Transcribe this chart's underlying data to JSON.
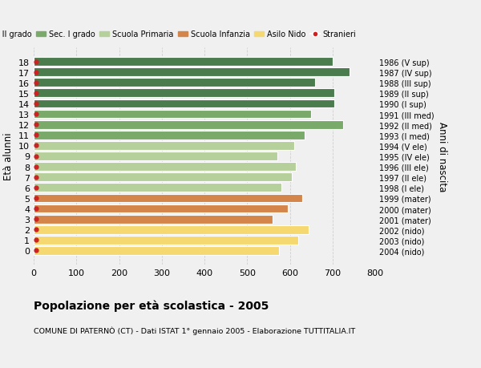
{
  "ages": [
    18,
    17,
    16,
    15,
    14,
    13,
    12,
    11,
    10,
    9,
    8,
    7,
    6,
    5,
    4,
    3,
    2,
    1,
    0
  ],
  "values": [
    700,
    740,
    660,
    705,
    705,
    650,
    725,
    635,
    610,
    570,
    615,
    605,
    580,
    630,
    595,
    560,
    645,
    620,
    575
  ],
  "right_labels": [
    "1986 (V sup)",
    "1987 (IV sup)",
    "1988 (III sup)",
    "1989 (II sup)",
    "1990 (I sup)",
    "1991 (III med)",
    "1992 (II med)",
    "1993 (I med)",
    "1994 (V ele)",
    "1995 (IV ele)",
    "1996 (III ele)",
    "1997 (II ele)",
    "1998 (I ele)",
    "1999 (mater)",
    "2000 (mater)",
    "2001 (mater)",
    "2002 (nido)",
    "2003 (nido)",
    "2004 (nido)"
  ],
  "bar_colors": [
    "#4a7c4e",
    "#4a7c4e",
    "#4a7c4e",
    "#4a7c4e",
    "#4a7c4e",
    "#7aaa6a",
    "#7aaa6a",
    "#7aaa6a",
    "#b5d09a",
    "#b5d09a",
    "#b5d09a",
    "#b5d09a",
    "#b5d09a",
    "#d4864a",
    "#d4864a",
    "#d4864a",
    "#f5d870",
    "#f5d870",
    "#f5d870"
  ],
  "stranieri_color": "#cc2222",
  "legend_labels": [
    "Sec. II grado",
    "Sec. I grado",
    "Scuola Primaria",
    "Scuola Infanzia",
    "Asilo Nido",
    "Stranieri"
  ],
  "legend_colors": [
    "#4a7c4e",
    "#7aaa6a",
    "#b5d09a",
    "#d4864a",
    "#f5d870",
    "#cc2222"
  ],
  "ylabel": "Età alunni",
  "right_ylabel": "Anni di nascita",
  "title": "Popolazione per età scolastica - 2005",
  "subtitle": "COMUNE DI PATERNÒ (CT) - Dati ISTAT 1° gennaio 2005 - Elaborazione TUTTITALIA.IT",
  "xlim": [
    0,
    800
  ],
  "xticks": [
    0,
    100,
    200,
    300,
    400,
    500,
    600,
    700,
    800
  ],
  "bg_color": "#f0f0f0",
  "bar_edge_color": "white",
  "grid_color": "#cccccc"
}
